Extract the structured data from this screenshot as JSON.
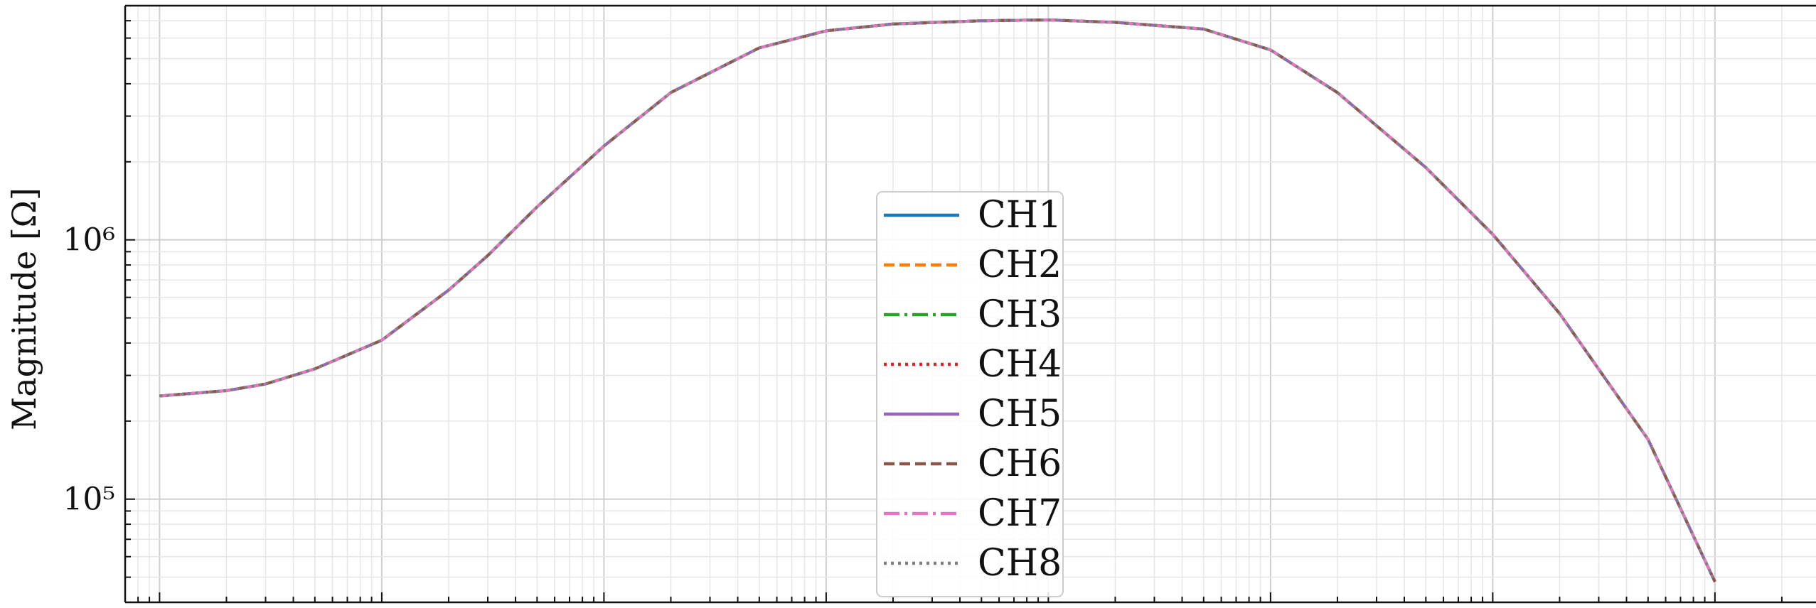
{
  "chart_data": {
    "type": "line",
    "title": "",
    "xlabel": "",
    "ylabel": "Magnitude [Ω]",
    "x_scale": "log",
    "y_scale": "log",
    "xlim": [
      0.7,
      40000000
    ],
    "ylim": [
      40000,
      8000000
    ],
    "grid": true,
    "legend_location": "center",
    "y_ticks": [
      {
        "value": 100000,
        "label": "10⁵"
      },
      {
        "value": 1000000,
        "label": "10⁶"
      }
    ],
    "x": [
      1,
      2,
      3,
      5,
      10,
      20,
      30,
      50,
      100,
      200,
      500,
      1000,
      2000,
      5000,
      10000,
      20000,
      50000,
      100000,
      200000,
      500000,
      1000000,
      2000000,
      5000000,
      10000000
    ],
    "series": [
      {
        "name": "CH1",
        "color": "#1f77b4",
        "dash": "solid",
        "values": [
          250000,
          262000,
          278000,
          318000,
          410000,
          640000,
          870000,
          1340000,
          2300000,
          3700000,
          5500000,
          6400000,
          6800000,
          7000000,
          7050000,
          6900000,
          6500000,
          5400000,
          3700000,
          1900000,
          1050000,
          520000,
          170000,
          48000
        ]
      },
      {
        "name": "CH2",
        "color": "#ff7f0e",
        "dash": "dashed",
        "values": [
          250000,
          262000,
          278000,
          318000,
          410000,
          640000,
          870000,
          1340000,
          2300000,
          3700000,
          5500000,
          6400000,
          6800000,
          7000000,
          7050000,
          6900000,
          6500000,
          5400000,
          3700000,
          1900000,
          1050000,
          520000,
          170000,
          48000
        ]
      },
      {
        "name": "CH3",
        "color": "#2ca02c",
        "dash": "dashdot",
        "values": [
          250000,
          262000,
          278000,
          318000,
          410000,
          640000,
          870000,
          1340000,
          2300000,
          3700000,
          5500000,
          6400000,
          6800000,
          7000000,
          7050000,
          6900000,
          6500000,
          5400000,
          3700000,
          1900000,
          1050000,
          520000,
          170000,
          48000
        ]
      },
      {
        "name": "CH4",
        "color": "#d62728",
        "dash": "dotted",
        "values": [
          250000,
          262000,
          278000,
          318000,
          410000,
          640000,
          870000,
          1340000,
          2300000,
          3700000,
          5500000,
          6400000,
          6800000,
          7000000,
          7050000,
          6900000,
          6500000,
          5400000,
          3700000,
          1900000,
          1050000,
          520000,
          170000,
          48000
        ]
      },
      {
        "name": "CH5",
        "color": "#9467bd",
        "dash": "solid",
        "values": [
          250000,
          262000,
          278000,
          318000,
          410000,
          640000,
          870000,
          1340000,
          2300000,
          3700000,
          5500000,
          6400000,
          6800000,
          7000000,
          7050000,
          6900000,
          6500000,
          5400000,
          3700000,
          1900000,
          1050000,
          520000,
          170000,
          48000
        ]
      },
      {
        "name": "CH6",
        "color": "#8c564b",
        "dash": "dashed",
        "values": [
          250000,
          262000,
          278000,
          318000,
          410000,
          640000,
          870000,
          1340000,
          2300000,
          3700000,
          5500000,
          6400000,
          6800000,
          7000000,
          7050000,
          6900000,
          6500000,
          5400000,
          3700000,
          1900000,
          1050000,
          520000,
          170000,
          48000
        ]
      },
      {
        "name": "CH7",
        "color": "#e377c2",
        "dash": "dashdot",
        "values": [
          250000,
          262000,
          278000,
          318000,
          410000,
          640000,
          870000,
          1340000,
          2300000,
          3700000,
          5500000,
          6400000,
          6800000,
          7000000,
          7050000,
          6900000,
          6500000,
          5400000,
          3700000,
          1900000,
          1050000,
          520000,
          170000,
          48000
        ]
      },
      {
        "name": "CH8",
        "color": "#7f7f7f",
        "dash": "dotted",
        "values": [
          250000,
          262000,
          278000,
          318000,
          410000,
          640000,
          870000,
          1340000,
          2300000,
          3700000,
          5500000,
          6400000,
          6800000,
          7000000,
          7050000,
          6900000,
          6500000,
          5400000,
          3700000,
          1900000,
          1050000,
          520000,
          170000,
          48000
        ]
      }
    ]
  }
}
